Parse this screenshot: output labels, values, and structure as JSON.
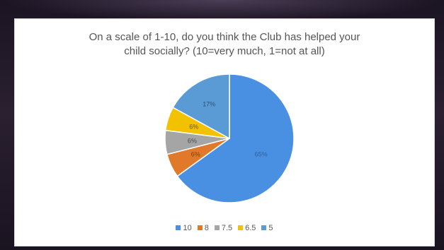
{
  "chart_data": {
    "type": "pie",
    "title_line1": "On a scale of 1-10, do you think the Club has helped your",
    "title_line2": "child socially? (10=very much, 1=not at all)",
    "categories": [
      "10",
      "8",
      "7.5",
      "6.5",
      "5"
    ],
    "values": [
      65,
      6,
      6,
      6,
      17
    ],
    "labels": [
      "65%",
      "6%",
      "6%",
      "6%",
      "17%"
    ],
    "colors": [
      "#4a90e2",
      "#e07a2a",
      "#a5a5a5",
      "#f2c200",
      "#5b9bd5"
    ],
    "legend_position": "bottom"
  }
}
